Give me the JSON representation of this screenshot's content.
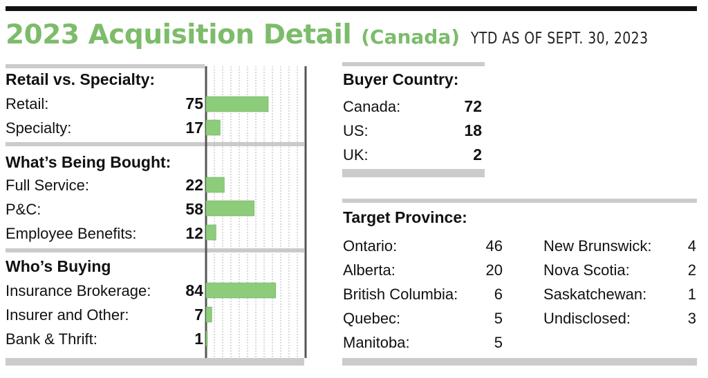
{
  "header": {
    "title": "2023 Acquisition Detail",
    "subtitle": "(Canada)",
    "date_note": "YTD AS OF SEPT. 30, 2023"
  },
  "colors": {
    "accent": "#7cbc6b",
    "bar": "#8ccc7a",
    "rule": "#cbcbcb",
    "ink": "#111111"
  },
  "chart_data": [
    {
      "type": "bar",
      "title": "Retail vs. Specialty:",
      "categories": [
        "Retail:",
        "Specialty:"
      ],
      "values": [
        75,
        17
      ],
      "xlim": [
        0,
        120
      ]
    },
    {
      "type": "bar",
      "title": "What’s Being Bought:",
      "categories": [
        "Full Service:",
        "P&C:",
        "Employee Benefits:"
      ],
      "values": [
        22,
        58,
        12
      ],
      "xlim": [
        0,
        120
      ]
    },
    {
      "type": "bar",
      "title": "Who’s Buying",
      "categories": [
        "Insurance Brokerage:",
        "Insurer and Other:",
        "Bank & Thrift:"
      ],
      "values": [
        84,
        7,
        1
      ],
      "xlim": [
        0,
        120
      ]
    }
  ],
  "buyer_country": {
    "title": "Buyer Country:",
    "rows": [
      {
        "label": "Canada:",
        "value": "72"
      },
      {
        "label": "US:",
        "value": "18"
      },
      {
        "label": "UK:",
        "value": "2"
      }
    ]
  },
  "target_province": {
    "title": "Target Province:",
    "left": [
      {
        "label": "Ontario:",
        "value": "46"
      },
      {
        "label": "Alberta:",
        "value": "20"
      },
      {
        "label": "British Columbia:",
        "value": "6"
      },
      {
        "label": "Quebec:",
        "value": "5"
      },
      {
        "label": "Manitoba:",
        "value": "5"
      }
    ],
    "right": [
      {
        "label": "New Brunswick:",
        "value": "4"
      },
      {
        "label": "Nova Scotia:",
        "value": "2"
      },
      {
        "label": "Saskatchewan:",
        "value": "1"
      },
      {
        "label": "Undisclosed:",
        "value": "3"
      }
    ]
  }
}
